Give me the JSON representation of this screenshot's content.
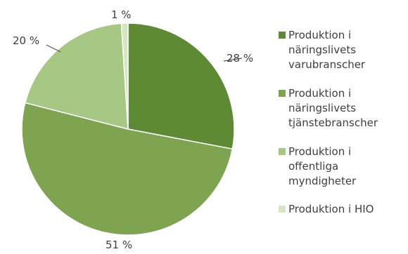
{
  "chart_data": {
    "type": "pie",
    "title": "",
    "legend_position": "right",
    "unit": "%",
    "slices": [
      {
        "label": "Produktion i näringslivets varubranscher",
        "legend_lines": [
          "Produktion i",
          "näringslivets",
          "varubranscher"
        ],
        "value": 28,
        "value_label": "28 %",
        "color": "#5e8a36"
      },
      {
        "label": "Produktion i näringslivets tjänstebranscher",
        "legend_lines": [
          "Produktion i",
          "näringslivets",
          "tjänstebranscher"
        ],
        "value": 51,
        "value_label": "51 %",
        "color": "#7ea452"
      },
      {
        "label": "Produktion i offentliga myndigheter",
        "legend_lines": [
          "Produktion i",
          "offentliga",
          "myndigheter"
        ],
        "value": 20,
        "value_label": "20 %",
        "color": "#a7c784"
      },
      {
        "label": "Produktion i HIO",
        "legend_lines": [
          "Produktion i HIO"
        ],
        "value": 1,
        "value_label": "1 %",
        "color": "#d6e6c3"
      }
    ]
  }
}
